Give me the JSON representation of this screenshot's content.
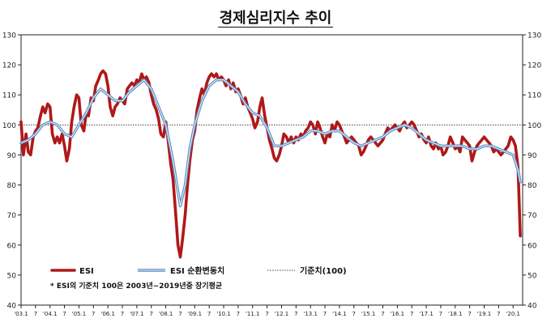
{
  "chart_data": {
    "type": "line",
    "title": "경제심리지수 추이",
    "ylim": [
      40,
      130
    ],
    "y_ticks": [
      40,
      50,
      60,
      70,
      80,
      90,
      100,
      110,
      120,
      130
    ],
    "x_range": [
      2003.0,
      2020.33
    ],
    "x_tick_labels": [
      {
        "x": 2003.0,
        "label": "'03.1"
      },
      {
        "x": 2003.5,
        "label": "7"
      },
      {
        "x": 2004.0,
        "label": "'04.1"
      },
      {
        "x": 2004.5,
        "label": "7"
      },
      {
        "x": 2005.0,
        "label": "'05.1"
      },
      {
        "x": 2005.5,
        "label": "7"
      },
      {
        "x": 2006.0,
        "label": "'06.1"
      },
      {
        "x": 2006.5,
        "label": "7"
      },
      {
        "x": 2007.0,
        "label": "'07.1"
      },
      {
        "x": 2007.5,
        "label": "7"
      },
      {
        "x": 2008.0,
        "label": "'08.1"
      },
      {
        "x": 2008.5,
        "label": "7"
      },
      {
        "x": 2009.0,
        "label": "'09.1"
      },
      {
        "x": 2009.5,
        "label": "7"
      },
      {
        "x": 2010.0,
        "label": "'10.1"
      },
      {
        "x": 2010.5,
        "label": "7"
      },
      {
        "x": 2011.0,
        "label": "'11.1"
      },
      {
        "x": 2011.5,
        "label": "7"
      },
      {
        "x": 2012.0,
        "label": "'12.1"
      },
      {
        "x": 2012.5,
        "label": "7"
      },
      {
        "x": 2013.0,
        "label": "'13.1"
      },
      {
        "x": 2013.5,
        "label": "7"
      },
      {
        "x": 2014.0,
        "label": "'14.1"
      },
      {
        "x": 2014.5,
        "label": "7"
      },
      {
        "x": 2015.0,
        "label": "'15.1"
      },
      {
        "x": 2015.5,
        "label": "7"
      },
      {
        "x": 2016.0,
        "label": "'16.1"
      },
      {
        "x": 2016.5,
        "label": "7"
      },
      {
        "x": 2017.0,
        "label": "'17.1"
      },
      {
        "x": 2017.5,
        "label": "7"
      },
      {
        "x": 2018.0,
        "label": "'18.1"
      },
      {
        "x": 2018.5,
        "label": "7"
      },
      {
        "x": 2019.0,
        "label": "'19.1"
      },
      {
        "x": 2019.5,
        "label": "7"
      },
      {
        "x": 2020.0,
        "label": "'20.1"
      }
    ],
    "reference_line": {
      "value": 100,
      "name": "기준치(100)"
    },
    "legend_position": "bottom-left",
    "note": "* ESI의 기준치 100은 2003년~2019년중 장기평균",
    "series": [
      {
        "name": "ESI",
        "color": "#b01818",
        "points": [
          [
            2003.0,
            101
          ],
          [
            2003.08,
            90
          ],
          [
            2003.17,
            97
          ],
          [
            2003.25,
            91
          ],
          [
            2003.33,
            90
          ],
          [
            2003.42,
            96
          ],
          [
            2003.5,
            98
          ],
          [
            2003.58,
            99
          ],
          [
            2003.67,
            103
          ],
          [
            2003.75,
            106
          ],
          [
            2003.83,
            104
          ],
          [
            2003.92,
            107
          ],
          [
            2004.0,
            106
          ],
          [
            2004.08,
            97
          ],
          [
            2004.17,
            94
          ],
          [
            2004.25,
            96
          ],
          [
            2004.33,
            94
          ],
          [
            2004.42,
            97
          ],
          [
            2004.5,
            93
          ],
          [
            2004.58,
            88
          ],
          [
            2004.67,
            92
          ],
          [
            2004.75,
            101
          ],
          [
            2004.83,
            106
          ],
          [
            2004.92,
            110
          ],
          [
            2005.0,
            109
          ],
          [
            2005.08,
            100
          ],
          [
            2005.17,
            98
          ],
          [
            2005.25,
            104
          ],
          [
            2005.33,
            103
          ],
          [
            2005.42,
            109
          ],
          [
            2005.5,
            108
          ],
          [
            2005.58,
            113
          ],
          [
            2005.67,
            115
          ],
          [
            2005.75,
            117
          ],
          [
            2005.83,
            118
          ],
          [
            2005.92,
            117
          ],
          [
            2006.0,
            113
          ],
          [
            2006.08,
            106
          ],
          [
            2006.17,
            103
          ],
          [
            2006.25,
            106
          ],
          [
            2006.33,
            107
          ],
          [
            2006.42,
            109
          ],
          [
            2006.5,
            108
          ],
          [
            2006.58,
            107
          ],
          [
            2006.67,
            112
          ],
          [
            2006.75,
            113
          ],
          [
            2006.83,
            114
          ],
          [
            2006.92,
            113
          ],
          [
            2007.0,
            115
          ],
          [
            2007.08,
            114
          ],
          [
            2007.17,
            117
          ],
          [
            2007.25,
            115
          ],
          [
            2007.33,
            116
          ],
          [
            2007.42,
            114
          ],
          [
            2007.5,
            110
          ],
          [
            2007.58,
            107
          ],
          [
            2007.67,
            105
          ],
          [
            2007.75,
            102
          ],
          [
            2007.83,
            97
          ],
          [
            2007.92,
            96
          ],
          [
            2008.0,
            101
          ],
          [
            2008.08,
            95
          ],
          [
            2008.17,
            87
          ],
          [
            2008.25,
            82
          ],
          [
            2008.33,
            72
          ],
          [
            2008.42,
            60
          ],
          [
            2008.5,
            56
          ],
          [
            2008.58,
            62
          ],
          [
            2008.67,
            70
          ],
          [
            2008.75,
            80
          ],
          [
            2008.83,
            88
          ],
          [
            2008.92,
            95
          ],
          [
            2009.0,
            98
          ],
          [
            2009.08,
            105
          ],
          [
            2009.17,
            109
          ],
          [
            2009.25,
            112
          ],
          [
            2009.33,
            110
          ],
          [
            2009.42,
            114
          ],
          [
            2009.5,
            116
          ],
          [
            2009.58,
            117
          ],
          [
            2009.67,
            116
          ],
          [
            2009.75,
            117
          ],
          [
            2009.83,
            115
          ],
          [
            2009.92,
            116
          ],
          [
            2010.0,
            115
          ],
          [
            2010.08,
            113
          ],
          [
            2010.17,
            115
          ],
          [
            2010.25,
            112
          ],
          [
            2010.33,
            114
          ],
          [
            2010.42,
            111
          ],
          [
            2010.5,
            112
          ],
          [
            2010.58,
            110
          ],
          [
            2010.67,
            107
          ],
          [
            2010.75,
            109
          ],
          [
            2010.83,
            106
          ],
          [
            2010.92,
            104
          ],
          [
            2011.0,
            102
          ],
          [
            2011.08,
            99
          ],
          [
            2011.17,
            101
          ],
          [
            2011.25,
            106
          ],
          [
            2011.33,
            109
          ],
          [
            2011.42,
            103
          ],
          [
            2011.5,
            99
          ],
          [
            2011.58,
            95
          ],
          [
            2011.67,
            92
          ],
          [
            2011.75,
            89
          ],
          [
            2011.83,
            88
          ],
          [
            2011.92,
            90
          ],
          [
            2012.0,
            93
          ],
          [
            2012.08,
            97
          ],
          [
            2012.17,
            96
          ],
          [
            2012.25,
            94
          ],
          [
            2012.33,
            96
          ],
          [
            2012.42,
            94
          ],
          [
            2012.5,
            96
          ],
          [
            2012.58,
            95
          ],
          [
            2012.67,
            97
          ],
          [
            2012.75,
            96
          ],
          [
            2012.83,
            98
          ],
          [
            2012.92,
            99
          ],
          [
            2013.0,
            101
          ],
          [
            2013.08,
            100
          ],
          [
            2013.17,
            97
          ],
          [
            2013.25,
            101
          ],
          [
            2013.33,
            99
          ],
          [
            2013.42,
            96
          ],
          [
            2013.5,
            94
          ],
          [
            2013.58,
            97
          ],
          [
            2013.67,
            96
          ],
          [
            2013.75,
            100
          ],
          [
            2013.83,
            98
          ],
          [
            2013.92,
            101
          ],
          [
            2014.0,
            100
          ],
          [
            2014.08,
            98
          ],
          [
            2014.17,
            96
          ],
          [
            2014.25,
            94
          ],
          [
            2014.33,
            95
          ],
          [
            2014.42,
            96
          ],
          [
            2014.5,
            95
          ],
          [
            2014.58,
            94
          ],
          [
            2014.67,
            93
          ],
          [
            2014.75,
            90
          ],
          [
            2014.83,
            91
          ],
          [
            2014.92,
            93
          ],
          [
            2015.0,
            95
          ],
          [
            2015.08,
            96
          ],
          [
            2015.17,
            95
          ],
          [
            2015.25,
            94
          ],
          [
            2015.33,
            93
          ],
          [
            2015.42,
            94
          ],
          [
            2015.5,
            95
          ],
          [
            2015.58,
            97
          ],
          [
            2015.67,
            99
          ],
          [
            2015.75,
            98
          ],
          [
            2015.83,
            99
          ],
          [
            2015.92,
            100
          ],
          [
            2016.0,
            99
          ],
          [
            2016.08,
            98
          ],
          [
            2016.17,
            100
          ],
          [
            2016.25,
            101
          ],
          [
            2016.33,
            99
          ],
          [
            2016.42,
            100
          ],
          [
            2016.5,
            101
          ],
          [
            2016.58,
            100
          ],
          [
            2016.67,
            98
          ],
          [
            2016.75,
            96
          ],
          [
            2016.83,
            97
          ],
          [
            2016.92,
            95
          ],
          [
            2017.0,
            94
          ],
          [
            2017.08,
            96
          ],
          [
            2017.17,
            93
          ],
          [
            2017.25,
            92
          ],
          [
            2017.33,
            94
          ],
          [
            2017.42,
            92
          ],
          [
            2017.5,
            93
          ],
          [
            2017.58,
            90
          ],
          [
            2017.67,
            91
          ],
          [
            2017.75,
            93
          ],
          [
            2017.83,
            96
          ],
          [
            2017.92,
            94
          ],
          [
            2018.0,
            92
          ],
          [
            2018.08,
            93
          ],
          [
            2018.17,
            91
          ],
          [
            2018.25,
            96
          ],
          [
            2018.33,
            95
          ],
          [
            2018.42,
            94
          ],
          [
            2018.5,
            93
          ],
          [
            2018.58,
            88
          ],
          [
            2018.67,
            91
          ],
          [
            2018.75,
            93
          ],
          [
            2018.83,
            94
          ],
          [
            2018.92,
            95
          ],
          [
            2019.0,
            96
          ],
          [
            2019.08,
            95
          ],
          [
            2019.17,
            94
          ],
          [
            2019.25,
            93
          ],
          [
            2019.33,
            91
          ],
          [
            2019.42,
            92
          ],
          [
            2019.5,
            91
          ],
          [
            2019.58,
            90
          ],
          [
            2019.67,
            91
          ],
          [
            2019.75,
            92
          ],
          [
            2019.83,
            93
          ],
          [
            2019.92,
            96
          ],
          [
            2020.0,
            95
          ],
          [
            2020.08,
            93
          ],
          [
            2020.17,
            86
          ],
          [
            2020.25,
            63
          ]
        ]
      },
      {
        "name": "ESI 순환변동치",
        "color": "#5a8cc4",
        "points": [
          [
            2003.0,
            94
          ],
          [
            2003.25,
            95
          ],
          [
            2003.5,
            97
          ],
          [
            2003.75,
            100
          ],
          [
            2004.0,
            101
          ],
          [
            2004.25,
            100
          ],
          [
            2004.5,
            97
          ],
          [
            2004.75,
            96
          ],
          [
            2005.0,
            100
          ],
          [
            2005.25,
            104
          ],
          [
            2005.5,
            109
          ],
          [
            2005.75,
            112
          ],
          [
            2006.0,
            110
          ],
          [
            2006.25,
            108
          ],
          [
            2006.5,
            108
          ],
          [
            2006.75,
            111
          ],
          [
            2007.0,
            113
          ],
          [
            2007.25,
            115
          ],
          [
            2007.5,
            112
          ],
          [
            2007.75,
            106
          ],
          [
            2008.0,
            100
          ],
          [
            2008.25,
            88
          ],
          [
            2008.5,
            73
          ],
          [
            2008.67,
            80
          ],
          [
            2008.83,
            92
          ],
          [
            2009.0,
            100
          ],
          [
            2009.25,
            108
          ],
          [
            2009.5,
            113
          ],
          [
            2009.75,
            115
          ],
          [
            2010.0,
            115
          ],
          [
            2010.25,
            113
          ],
          [
            2010.5,
            111
          ],
          [
            2010.75,
            107
          ],
          [
            2011.0,
            104
          ],
          [
            2011.25,
            103
          ],
          [
            2011.5,
            99
          ],
          [
            2011.75,
            93
          ],
          [
            2012.0,
            93
          ],
          [
            2012.25,
            94
          ],
          [
            2012.5,
            95
          ],
          [
            2012.75,
            96
          ],
          [
            2013.0,
            98
          ],
          [
            2013.25,
            98
          ],
          [
            2013.5,
            97
          ],
          [
            2013.75,
            98
          ],
          [
            2014.0,
            98
          ],
          [
            2014.25,
            96
          ],
          [
            2014.5,
            94
          ],
          [
            2014.75,
            93
          ],
          [
            2015.0,
            94
          ],
          [
            2015.25,
            95
          ],
          [
            2015.5,
            96
          ],
          [
            2015.75,
            98
          ],
          [
            2016.0,
            99
          ],
          [
            2016.25,
            100
          ],
          [
            2016.5,
            99
          ],
          [
            2016.75,
            97
          ],
          [
            2017.0,
            95
          ],
          [
            2017.25,
            94
          ],
          [
            2017.5,
            93
          ],
          [
            2017.75,
            93
          ],
          [
            2018.0,
            93
          ],
          [
            2018.25,
            93
          ],
          [
            2018.5,
            92
          ],
          [
            2018.75,
            92
          ],
          [
            2019.0,
            93
          ],
          [
            2019.25,
            93
          ],
          [
            2019.5,
            92
          ],
          [
            2019.75,
            91
          ],
          [
            2020.0,
            90
          ],
          [
            2020.17,
            85
          ],
          [
            2020.25,
            81
          ]
        ]
      }
    ]
  }
}
